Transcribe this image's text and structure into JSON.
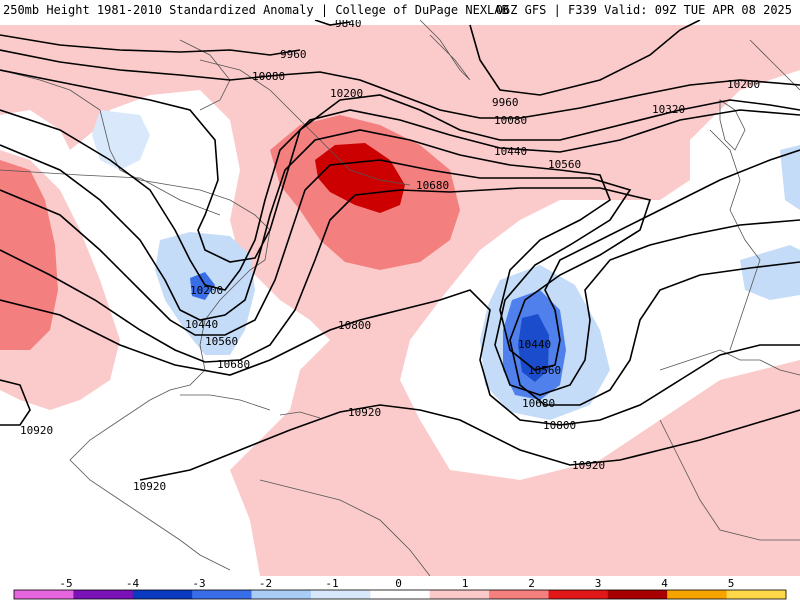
{
  "header": {
    "title": "250mb Height 1981-2010 Standardized Anomaly | College of DuPage NEXLAB",
    "run_info": "06Z GFS | F339 Valid: 09Z TUE APR 08 2025"
  },
  "map": {
    "region": "North Atlantic / North America",
    "field": "250mb geopotential height (dam-m) with standardized anomaly shading",
    "contour_labels": [
      {
        "id": "c9840",
        "text": "9840"
      },
      {
        "id": "c9960a",
        "text": "9960"
      },
      {
        "id": "c9960b",
        "text": "9960"
      },
      {
        "id": "c10080a",
        "text": "10080"
      },
      {
        "id": "c10080b",
        "text": "10080"
      },
      {
        "id": "c10200a",
        "text": "10200"
      },
      {
        "id": "c10200b",
        "text": "10200"
      },
      {
        "id": "c10200c",
        "text": "10200"
      },
      {
        "id": "c10320",
        "text": "10320"
      },
      {
        "id": "c10440a",
        "text": "10440"
      },
      {
        "id": "c10440b",
        "text": "10440"
      },
      {
        "id": "c10440c",
        "text": "10440"
      },
      {
        "id": "c10560a",
        "text": "10560"
      },
      {
        "id": "c10560b",
        "text": "10560"
      },
      {
        "id": "c10560c",
        "text": "10560"
      },
      {
        "id": "c10680a",
        "text": "10680"
      },
      {
        "id": "c10680b",
        "text": "10680"
      },
      {
        "id": "c10680c",
        "text": "10680"
      },
      {
        "id": "c10800a",
        "text": "10800"
      },
      {
        "id": "c10800b",
        "text": "10800"
      },
      {
        "id": "c10920a",
        "text": "10920"
      },
      {
        "id": "c10920b",
        "text": "10920"
      },
      {
        "id": "c10920c",
        "text": "10920"
      },
      {
        "id": "c10920d",
        "text": "10920"
      }
    ]
  },
  "colorbar": {
    "ticks": [
      "-5",
      "-4",
      "-3",
      "-2",
      "-1",
      "0",
      "1",
      "2",
      "3",
      "4",
      "5"
    ],
    "colors": [
      "#e766e0",
      "#7a12b8",
      "#0a3ac0",
      "#3a6ee8",
      "#a9cdf5",
      "#d8e8fb",
      "#ffffff",
      "#fbc9c9",
      "#f47f7f",
      "#e21818",
      "#a80000",
      "#f7a400",
      "#ffd84a"
    ]
  }
}
